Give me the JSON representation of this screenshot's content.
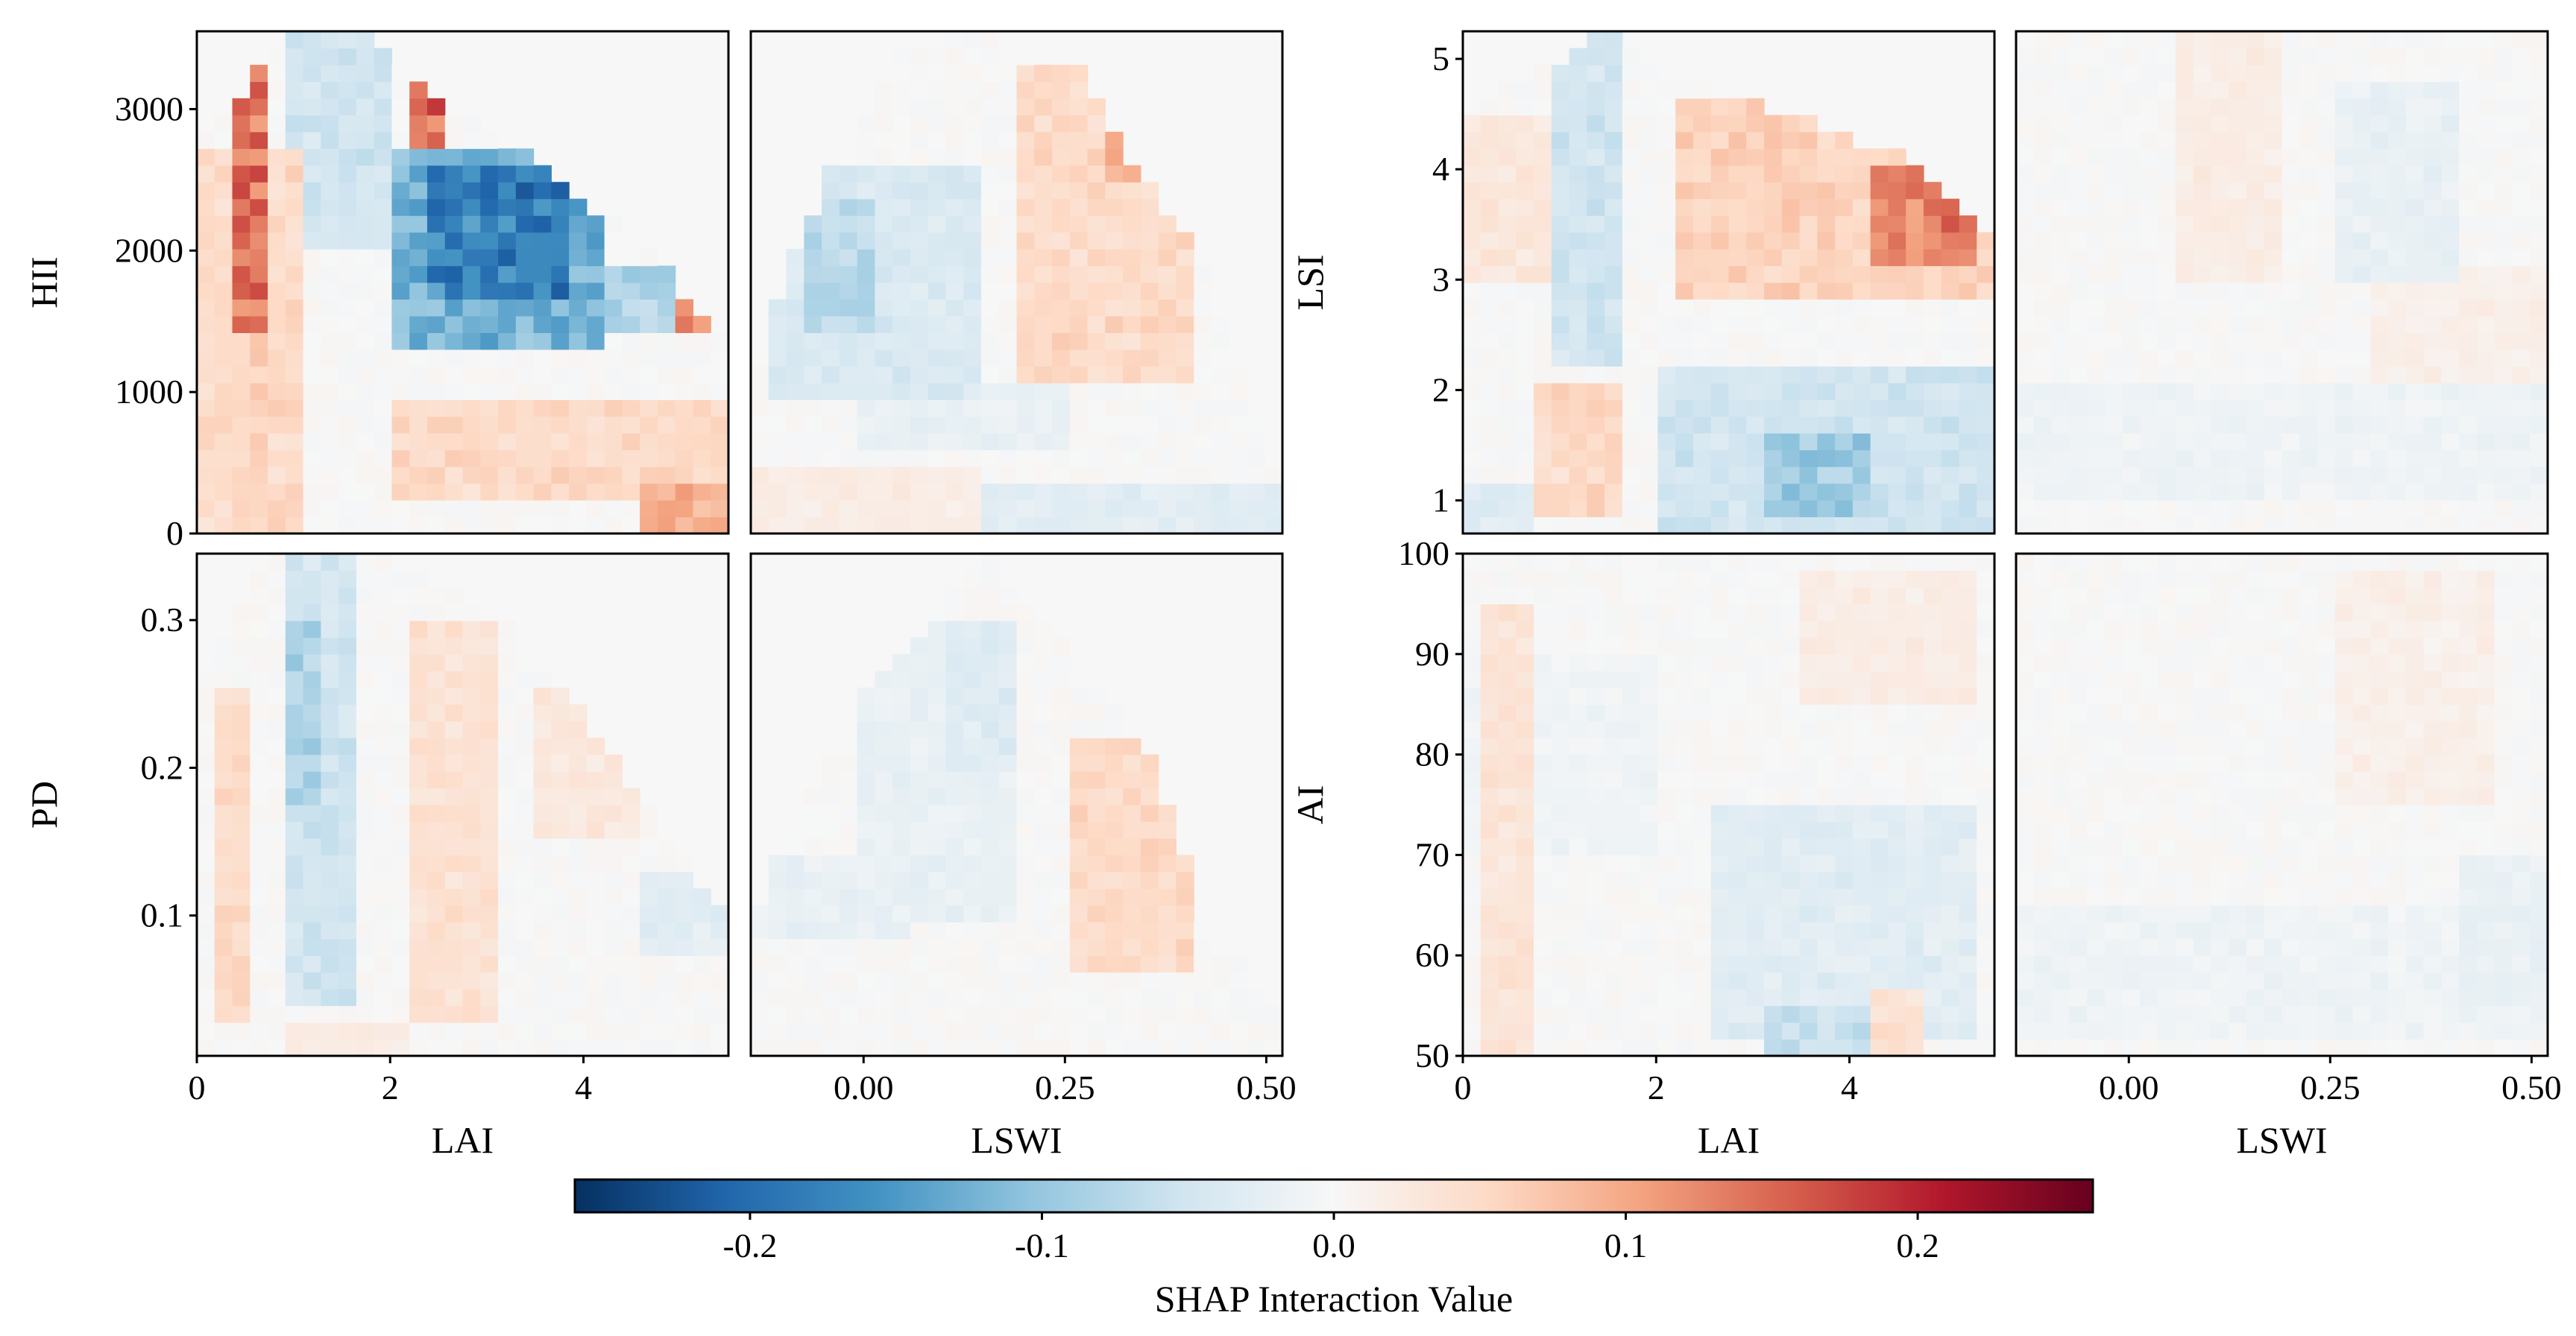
{
  "chart_data": [
    {
      "type": "heatmap",
      "panel": "top-left",
      "xlabel": "",
      "ylabel": "HII",
      "xlim": [
        0,
        5.5
      ],
      "ylim": [
        0,
        3550
      ],
      "xticks": [
        0,
        2,
        4
      ],
      "xtick_labels": [
        "0",
        "2",
        "4"
      ],
      "show_xticks": false,
      "yticks": [
        0,
        1000,
        2000,
        3000
      ],
      "ytick_labels": [
        "0",
        "1000",
        "2000",
        "3000"
      ],
      "cols": 30,
      "rows": 30,
      "boundary": [
        [
          0.0,
          2700
        ],
        [
          0.9,
          3550
        ],
        [
          1.8,
          3550
        ],
        [
          2.5,
          3050
        ],
        [
          3.5,
          2650
        ],
        [
          4.5,
          2100
        ],
        [
          5.2,
          1600
        ],
        [
          5.5,
          1400
        ]
      ],
      "features": [
        {
          "x": [
            0.0,
            1.1
          ],
          "y": [
            0,
            2700
          ],
          "v": 0.05
        },
        {
          "x": [
            0.35,
            0.75
          ],
          "y": [
            1400,
            3550
          ],
          "v": 0.14
        },
        {
          "x": [
            0.6,
            0.72
          ],
          "y": [
            300,
            2200
          ],
          "v": 0.06
        },
        {
          "x": [
            0.9,
            2.0
          ],
          "y": [
            2000,
            3550
          ],
          "v": -0.05
        },
        {
          "x": [
            2.0,
            4.2
          ],
          "y": [
            1300,
            2700
          ],
          "v": -0.12
        },
        {
          "x": [
            2.3,
            3.9
          ],
          "y": [
            1700,
            2550
          ],
          "v": -0.18
        },
        {
          "x": [
            2.2,
            2.6
          ],
          "y": [
            2750,
            3150
          ],
          "v": 0.15
        },
        {
          "x": [
            4.2,
            5.3
          ],
          "y": [
            1400,
            1900
          ],
          "v": -0.08
        },
        {
          "x": [
            5.0,
            5.3
          ],
          "y": [
            1400,
            1650
          ],
          "v": 0.12
        },
        {
          "x": [
            2.0,
            5.5
          ],
          "y": [
            200,
            1000
          ],
          "v": 0.05
        },
        {
          "x": [
            4.5,
            5.5
          ],
          "y": [
            0,
            400
          ],
          "v": 0.1
        },
        {
          "x": [
            0.7,
            1.1
          ],
          "y": [
            0,
            900
          ],
          "v": -0.03
        }
      ]
    },
    {
      "type": "heatmap",
      "panel": "top-center-left",
      "xlabel": "",
      "ylabel": "",
      "xlim": [
        -0.14,
        0.52
      ],
      "ylim": [
        0,
        3550
      ],
      "xticks": [
        0.0,
        0.25,
        0.5
      ],
      "xtick_labels": [
        "0.00",
        "0.25",
        "0.50"
      ],
      "show_xticks": false,
      "yticks": [],
      "ytick_labels": [],
      "cols": 30,
      "rows": 30,
      "boundary": [
        [
          -0.14,
          1100
        ],
        [
          -0.05,
          2500
        ],
        [
          0.05,
          3400
        ],
        [
          0.15,
          3550
        ],
        [
          0.27,
          3250
        ],
        [
          0.35,
          2500
        ],
        [
          0.42,
          1900
        ],
        [
          0.5,
          600
        ],
        [
          0.52,
          300
        ]
      ],
      "features": [
        {
          "x": [
            -0.12,
            0.15
          ],
          "y": [
            1000,
            2600
          ],
          "v": -0.04
        },
        {
          "x": [
            -0.08,
            0.02
          ],
          "y": [
            1400,
            2400
          ],
          "v": -0.07
        },
        {
          "x": [
            0.18,
            0.42
          ],
          "y": [
            1100,
            3300
          ],
          "v": 0.05
        },
        {
          "x": [
            0.3,
            0.37
          ],
          "y": [
            2500,
            3000
          ],
          "v": 0.09
        },
        {
          "x": [
            0.36,
            0.38
          ],
          "y": [
            2650,
            2800
          ],
          "v": 0.18
        },
        {
          "x": [
            0.0,
            0.25
          ],
          "y": [
            600,
            1100
          ],
          "v": -0.02
        },
        {
          "x": [
            0.15,
            0.52
          ],
          "y": [
            0,
            400
          ],
          "v": -0.03
        },
        {
          "x": [
            -0.14,
            0.15
          ],
          "y": [
            0,
            500
          ],
          "v": 0.02
        }
      ]
    },
    {
      "type": "heatmap",
      "panel": "top-center-right",
      "xlabel": "",
      "ylabel": "LSI",
      "xlim": [
        0,
        5.5
      ],
      "ylim": [
        0.7,
        5.25
      ],
      "xticks": [
        0,
        2,
        4
      ],
      "xtick_labels": [
        "0",
        "2",
        "4"
      ],
      "show_xticks": false,
      "yticks": [
        1,
        2,
        3,
        4,
        5
      ],
      "ytick_labels": [
        "1",
        "2",
        "3",
        "4",
        "5"
      ],
      "cols": 30,
      "rows": 30,
      "boundary": [
        [
          0.0,
          4.5
        ],
        [
          1.0,
          5.0
        ],
        [
          1.5,
          5.25
        ],
        [
          2.0,
          4.9
        ],
        [
          3.0,
          4.6
        ],
        [
          4.0,
          4.3
        ],
        [
          4.8,
          4.0
        ],
        [
          5.5,
          3.4
        ]
      ],
      "features": [
        {
          "x": [
            1.0,
            1.7
          ],
          "y": [
            2.2,
            5.25
          ],
          "v": -0.05
        },
        {
          "x": [
            2.2,
            5.5
          ],
          "y": [
            2.8,
            4.7
          ],
          "v": 0.06
        },
        {
          "x": [
            4.2,
            5.3
          ],
          "y": [
            3.2,
            4.0
          ],
          "v": 0.12
        },
        {
          "x": [
            4.9,
            5.2
          ],
          "y": [
            3.4,
            3.8
          ],
          "v": 0.19
        },
        {
          "x": [
            2.0,
            5.5
          ],
          "y": [
            0.7,
            2.2
          ],
          "v": -0.05
        },
        {
          "x": [
            3.2,
            4.2
          ],
          "y": [
            0.8,
            1.6
          ],
          "v": -0.09
        },
        {
          "x": [
            0.8,
            1.6
          ],
          "y": [
            0.9,
            2.0
          ],
          "v": 0.05
        },
        {
          "x": [
            0.0,
            1.0
          ],
          "y": [
            3.0,
            4.5
          ],
          "v": 0.03
        },
        {
          "x": [
            0.0,
            0.8
          ],
          "y": [
            0.7,
            1.2
          ],
          "v": -0.03
        }
      ]
    },
    {
      "type": "heatmap",
      "panel": "top-right",
      "xlabel": "",
      "ylabel": "",
      "xlim": [
        -0.14,
        0.52
      ],
      "ylim": [
        0.7,
        5.25
      ],
      "xticks": [
        0.0,
        0.25,
        0.5
      ],
      "xtick_labels": [
        "0.00",
        "0.25",
        "0.50"
      ],
      "show_xticks": false,
      "yticks": [],
      "ytick_labels": [],
      "cols": 30,
      "rows": 30,
      "boundary": [
        [
          -0.14,
          5.25
        ],
        [
          0.52,
          5.25
        ]
      ],
      "features": [
        {
          "x": [
            0.05,
            0.2
          ],
          "y": [
            3.0,
            5.25
          ],
          "v": 0.02
        },
        {
          "x": [
            0.25,
            0.4
          ],
          "y": [
            3.0,
            4.8
          ],
          "v": -0.02
        },
        {
          "x": [
            0.3,
            0.52
          ],
          "y": [
            2.0,
            3.2
          ],
          "v": 0.015
        },
        {
          "x": [
            -0.14,
            0.52
          ],
          "y": [
            1.0,
            2.0
          ],
          "v": -0.012
        }
      ]
    },
    {
      "type": "heatmap",
      "panel": "bottom-left",
      "xlabel": "LAI",
      "ylabel": "PD",
      "xlim": [
        0,
        5.5
      ],
      "ylim": [
        0.005,
        0.345
      ],
      "xticks": [
        0,
        2,
        4
      ],
      "xtick_labels": [
        "0",
        "2",
        "4"
      ],
      "show_xticks": true,
      "yticks": [
        0.1,
        0.2,
        0.3
      ],
      "ytick_labels": [
        "0.1",
        "0.2",
        "0.3"
      ],
      "cols": 30,
      "rows": 30,
      "boundary": [
        [
          0.0,
          0.26
        ],
        [
          0.8,
          0.345
        ],
        [
          1.8,
          0.345
        ],
        [
          3.0,
          0.31
        ],
        [
          4.2,
          0.22
        ],
        [
          5.0,
          0.14
        ],
        [
          5.5,
          0.1
        ]
      ],
      "features": [
        {
          "x": [
            0.9,
            1.7
          ],
          "y": [
            0.04,
            0.34
          ],
          "v": -0.05
        },
        {
          "x": [
            0.9,
            1.3
          ],
          "y": [
            0.18,
            0.3
          ],
          "v": -0.08
        },
        {
          "x": [
            2.2,
            3.2
          ],
          "y": [
            0.03,
            0.3
          ],
          "v": 0.04
        },
        {
          "x": [
            0.2,
            0.6
          ],
          "y": [
            0.03,
            0.25
          ],
          "v": 0.05
        },
        {
          "x": [
            3.5,
            4.6
          ],
          "y": [
            0.15,
            0.25
          ],
          "v": 0.03
        },
        {
          "x": [
            4.5,
            5.5
          ],
          "y": [
            0.07,
            0.13
          ],
          "v": -0.03
        },
        {
          "x": [
            0.9,
            2.2
          ],
          "y": [
            0.005,
            0.03
          ],
          "v": 0.02
        }
      ]
    },
    {
      "type": "heatmap",
      "panel": "bottom-center-left",
      "xlabel": "LSWI",
      "ylabel": "",
      "xlim": [
        -0.14,
        0.52
      ],
      "ylim": [
        0.005,
        0.345
      ],
      "xticks": [
        0.0,
        0.25,
        0.5
      ],
      "xtick_labels": [
        "0.00",
        "0.25",
        "0.50"
      ],
      "show_xticks": true,
      "yticks": [],
      "ytick_labels": [],
      "cols": 30,
      "rows": 30,
      "boundary": [
        [
          -0.14,
          0.1
        ],
        [
          0.0,
          0.25
        ],
        [
          0.15,
          0.345
        ],
        [
          0.22,
          0.3
        ],
        [
          0.35,
          0.22
        ],
        [
          0.42,
          0.1
        ],
        [
          0.52,
          0.03
        ]
      ],
      "features": [
        {
          "x": [
            0.25,
            0.42
          ],
          "y": [
            0.06,
            0.22
          ],
          "v": 0.05
        },
        {
          "x": [
            0.36,
            0.4
          ],
          "y": [
            0.19,
            0.22
          ],
          "v": 0.1
        },
        {
          "x": [
            0.0,
            0.2
          ],
          "y": [
            0.1,
            0.3
          ],
          "v": -0.02
        },
        {
          "x": [
            0.1,
            0.2
          ],
          "y": [
            0.2,
            0.3
          ],
          "v": -0.035
        },
        {
          "x": [
            -0.14,
            0.05
          ],
          "y": [
            0.08,
            0.14
          ],
          "v": -0.02
        }
      ]
    },
    {
      "type": "heatmap",
      "panel": "bottom-center-right",
      "xlabel": "LAI",
      "ylabel": "AI",
      "xlim": [
        0,
        5.5
      ],
      "ylim": [
        50,
        100
      ],
      "xticks": [
        0,
        2,
        4
      ],
      "xtick_labels": [
        "0",
        "2",
        "4"
      ],
      "show_xticks": true,
      "yticks": [
        50,
        60,
        70,
        80,
        90,
        100
      ],
      "ytick_labels": [
        "50",
        "60",
        "70",
        "80",
        "90",
        "100"
      ],
      "cols": 30,
      "rows": 30,
      "boundary": [
        [
          0.0,
          100
        ],
        [
          5.5,
          100
        ]
      ],
      "features": [
        {
          "x": [
            0.2,
            0.7
          ],
          "y": [
            50,
            95
          ],
          "v": 0.035
        },
        {
          "x": [
            2.5,
            5.3
          ],
          "y": [
            52,
            75
          ],
          "v": -0.03
        },
        {
          "x": [
            3.2,
            4.3
          ],
          "y": [
            50,
            55
          ],
          "v": -0.06
        },
        {
          "x": [
            4.3,
            4.8
          ],
          "y": [
            50,
            57
          ],
          "v": 0.04
        },
        {
          "x": [
            3.5,
            5.3
          ],
          "y": [
            85,
            98
          ],
          "v": 0.02
        },
        {
          "x": [
            0.0,
            2.0
          ],
          "y": [
            70,
            90
          ],
          "v": -0.01
        }
      ]
    },
    {
      "type": "heatmap",
      "panel": "bottom-right",
      "xlabel": "LSWI",
      "ylabel": "",
      "xlim": [
        -0.14,
        0.52
      ],
      "ylim": [
        50,
        100
      ],
      "xticks": [
        0.0,
        0.25,
        0.5
      ],
      "xtick_labels": [
        "0.00",
        "0.25",
        "0.50"
      ],
      "show_xticks": true,
      "yticks": [],
      "ytick_labels": [],
      "cols": 30,
      "rows": 30,
      "boundary": [
        [
          -0.14,
          100
        ],
        [
          0.52,
          100
        ]
      ],
      "features": [
        {
          "x": [
            0.25,
            0.45
          ],
          "y": [
            75,
            98
          ],
          "v": 0.015
        },
        {
          "x": [
            -0.14,
            0.52
          ],
          "y": [
            52,
            65
          ],
          "v": -0.012
        },
        {
          "x": [
            0.42,
            0.52
          ],
          "y": [
            55,
            70
          ],
          "v": -0.02
        }
      ]
    },
    {
      "type": "colorbar",
      "label": "SHAP Interaction Value",
      "vlim": [
        -0.26,
        0.26
      ],
      "ticks": [
        -0.2,
        -0.1,
        0.0,
        0.1,
        0.2
      ],
      "tick_labels": [
        "-0.2",
        "-0.1",
        "0.0",
        "0.1",
        "0.2"
      ],
      "colormap": "RdBu_r",
      "colors": [
        "#053061",
        "#2166ac",
        "#4393c3",
        "#92c5de",
        "#d1e5f0",
        "#f7f7f7",
        "#fddbc7",
        "#f4a582",
        "#d6604d",
        "#b2182b",
        "#67001f"
      ]
    }
  ]
}
